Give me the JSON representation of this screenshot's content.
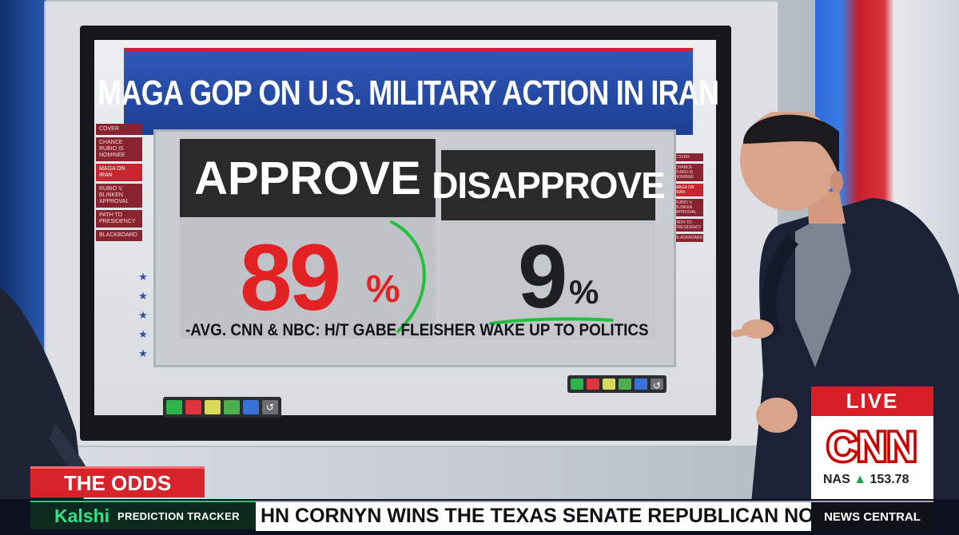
{
  "board": {
    "title": "MAGA GOP ON U.S. MILITARY ACTION IN IRAN",
    "approve_label": "APPROVE",
    "approve_value": "89",
    "approve_pct_sign": "%",
    "disapprove_label": "DISAPPROVE",
    "disapprove_value": "9",
    "disapprove_pct_sign": "%",
    "source": "-AVG. CNN & NBC: H/T GABE FLEISHER WAKE UP TO POLITICS",
    "nav_items": [
      "COVER",
      "CHANCE RUBIO IS NOMINEE",
      "MAGA ON IRAN",
      "RUBIO V. BLINKEN APPROVAL",
      "PATH TO PRESIDENCY",
      "BLACKBOARD"
    ],
    "active_nav_index": 2
  },
  "lower_third": {
    "segment": "THE ODDS",
    "brand": "Kalshi",
    "brand_sub": "PREDICTION TRACKER",
    "ticker": "HN CORNYN WINS THE TEXAS SENATE REPUBLICAN NO",
    "network_label": "NEWS CENTRAL"
  },
  "bug": {
    "live": "LIVE",
    "network": "CNN",
    "index_name": "NAS",
    "index_arrow": "▲",
    "index_value": "153.78"
  },
  "colors": {
    "approve": "#e32323",
    "cnn_red": "#d61f26",
    "banner_blue": "#1d3f93",
    "kalshi_green": "#35e08b",
    "ink_green": "#22c03a"
  },
  "toolbar_swatches": [
    "#2fb34a",
    "#e0343c",
    "#d8d85a",
    "#4cae4f",
    "#3a73d8"
  ]
}
